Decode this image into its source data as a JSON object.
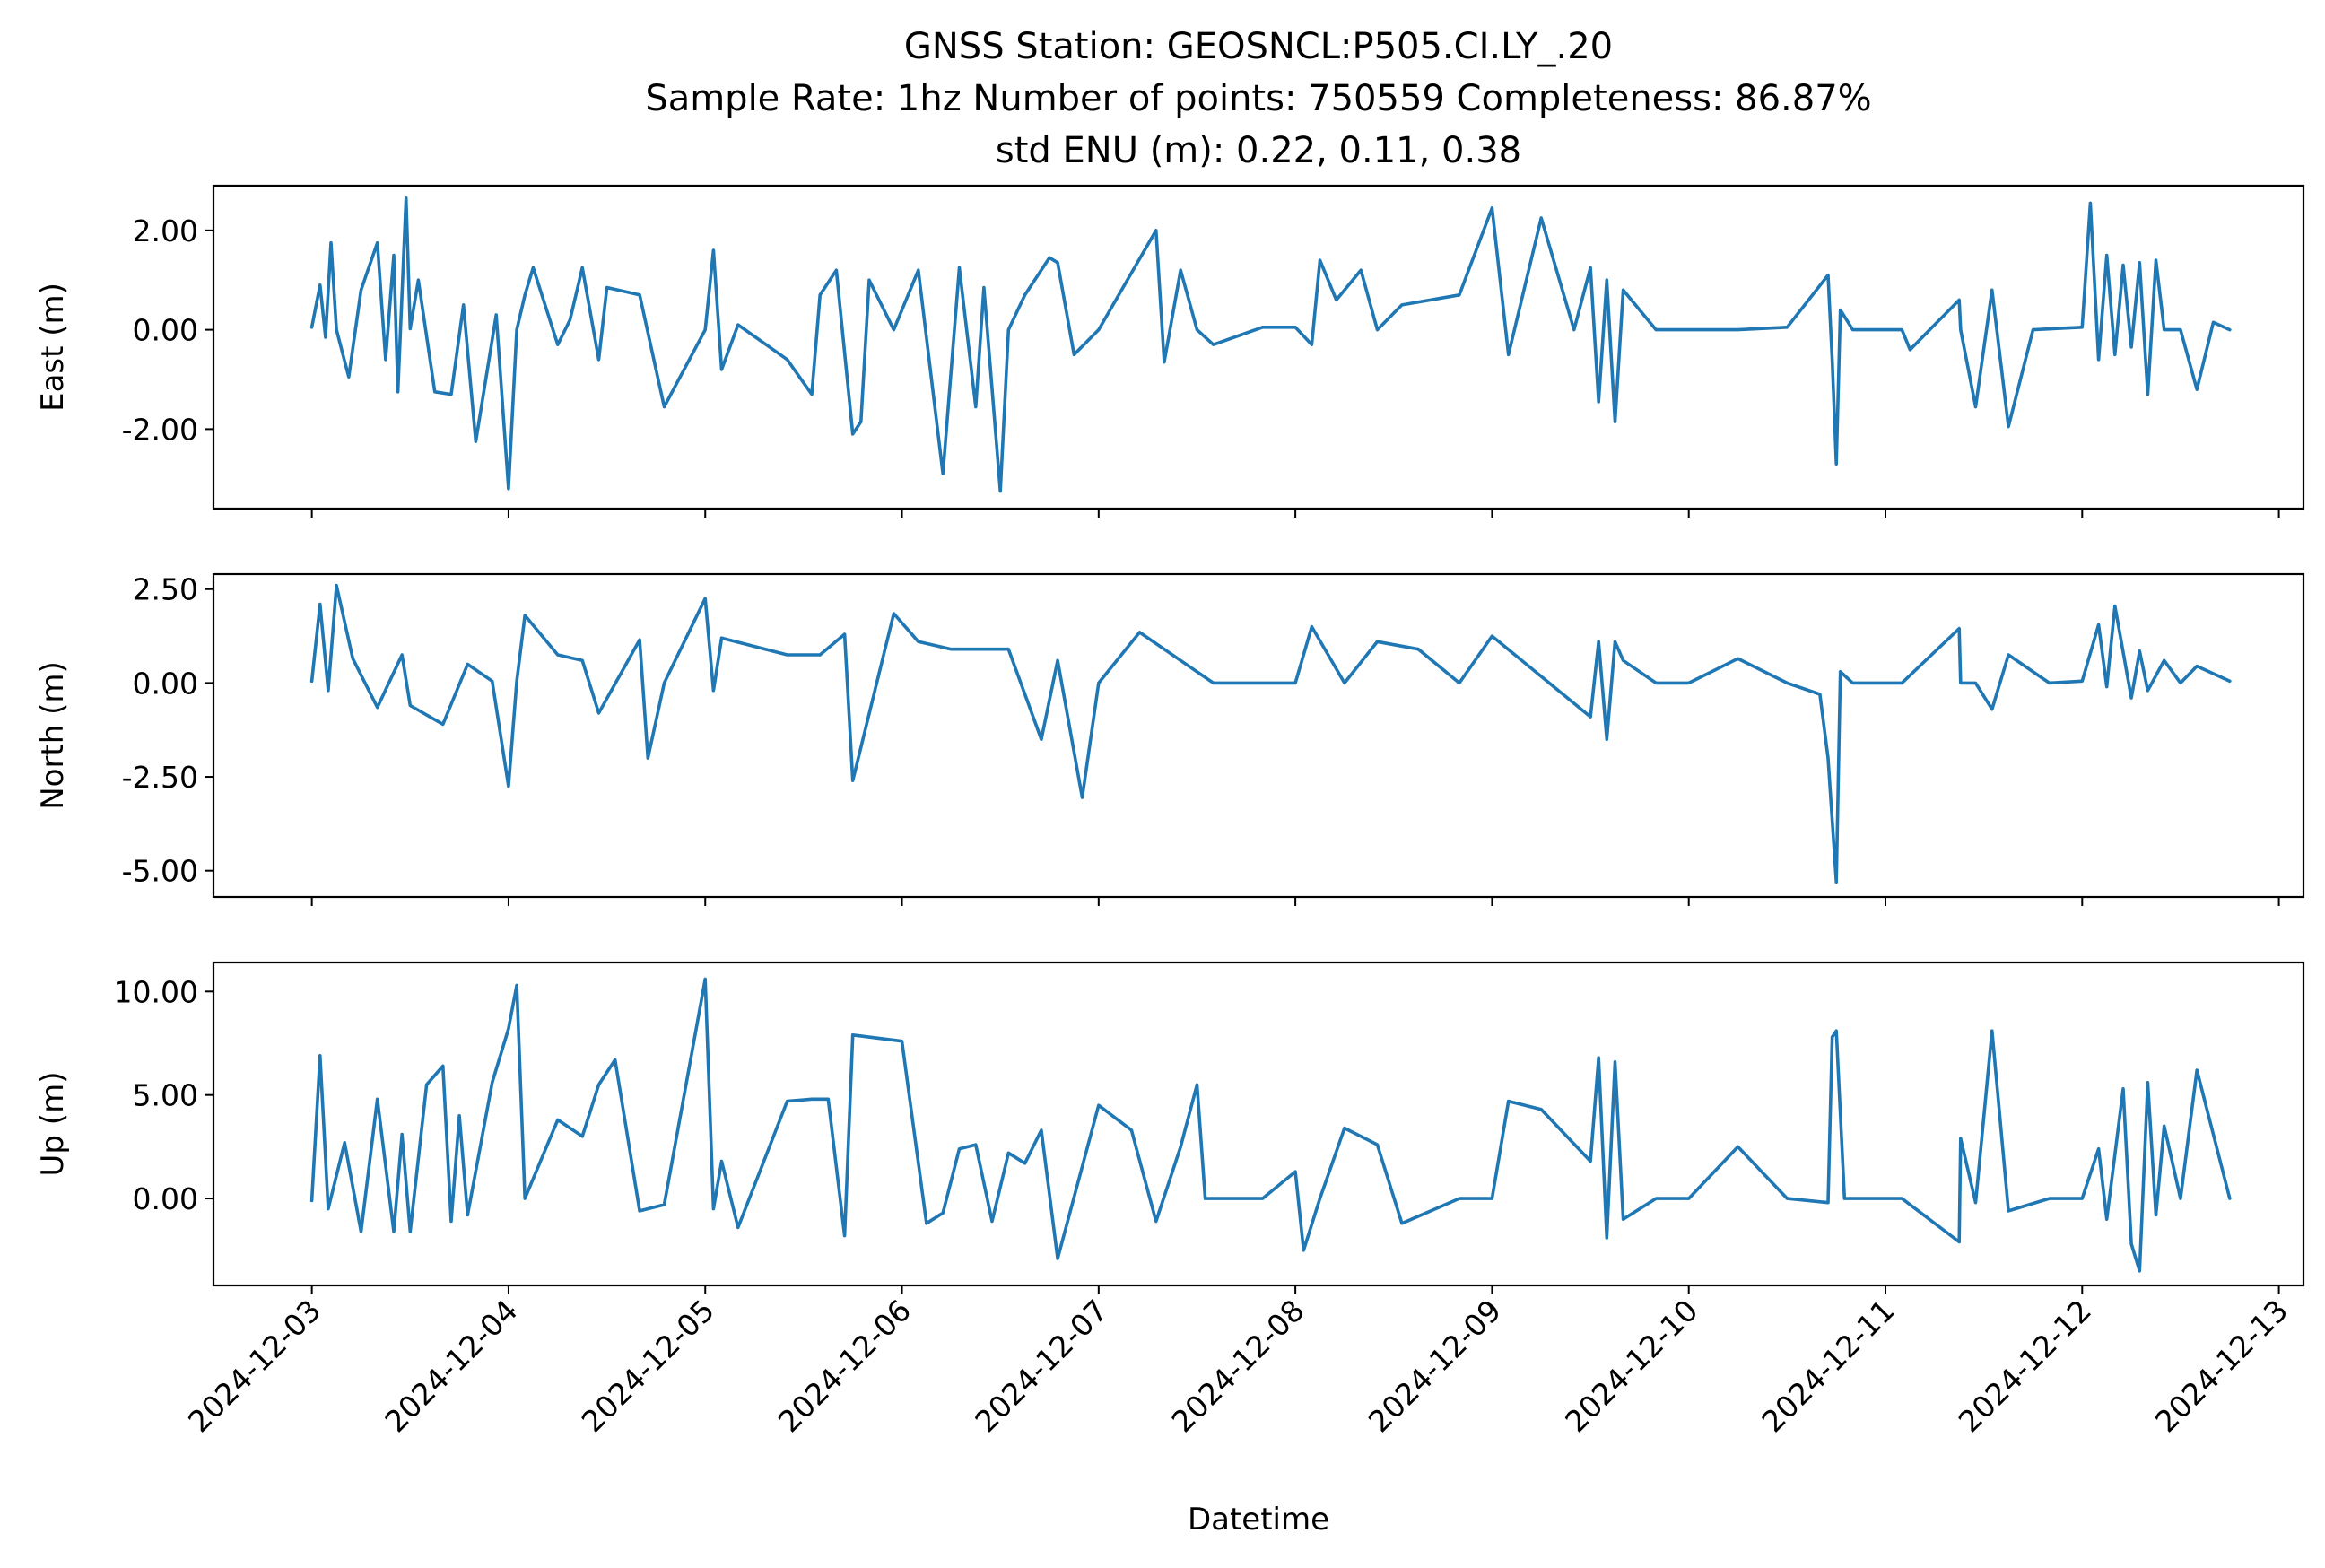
{
  "chart_data": [
    {
      "type": "line",
      "title_lines": [
        "GNSS Station: GEOSNCL:P505.CI.LY_.20",
        "Sample Rate: 1hz   Number of points: 750559    Completeness:  86.87%",
        "std ENU (m):  0.22, 0.11, 0.38"
      ],
      "xlabel": "Datetime",
      "xlim": [
        "2024-12-02T12:00",
        "2024-12-13T03:00"
      ],
      "x_ticks": [
        "2024-12-03",
        "2024-12-04",
        "2024-12-05",
        "2024-12-06",
        "2024-12-07",
        "2024-12-08",
        "2024-12-09",
        "2024-12-10",
        "2024-12-11",
        "2024-12-12",
        "2024-12-13"
      ],
      "color": "#1f77b4",
      "panels": [
        {
          "ylabel": "East (m)",
          "ylim": [
            -3.6,
            2.9
          ],
          "yticks": [
            2.0,
            0.0,
            -2.0
          ],
          "ytick_labels": [
            "2.00",
            "0.00",
            "-2.00"
          ],
          "series": [
            {
              "x": [
                "2024-12-03T00:00",
                "2024-12-03T01:00",
                "2024-12-03T01:40",
                "2024-12-03T02:20",
                "2024-12-03T03:00",
                "2024-12-03T04:30",
                "2024-12-03T06:00",
                "2024-12-03T08:00",
                "2024-12-03T09:00",
                "2024-12-03T10:00",
                "2024-12-03T10:30",
                "2024-12-03T11:30",
                "2024-12-03T12:00",
                "2024-12-03T13:00",
                "2024-12-03T15:00",
                "2024-12-03T17:00",
                "2024-12-03T18:30",
                "2024-12-03T20:00",
                "2024-12-03T22:30",
                "2024-12-04T00:00",
                "2024-12-04T01:00",
                "2024-12-04T02:00",
                "2024-12-04T03:00",
                "2024-12-04T06:00",
                "2024-12-04T07:30",
                "2024-12-04T09:00",
                "2024-12-04T11:00",
                "2024-12-04T12:00",
                "2024-12-04T16:00",
                "2024-12-04T19:00",
                "2024-12-05T00:00",
                "2024-12-05T01:00",
                "2024-12-05T02:00",
                "2024-12-05T04:00",
                "2024-12-05T10:00",
                "2024-12-05T13:00",
                "2024-12-05T14:00",
                "2024-12-05T16:00",
                "2024-12-05T18:00",
                "2024-12-05T19:00",
                "2024-12-05T20:00",
                "2024-12-05T23:00",
                "2024-12-06T02:00",
                "2024-12-06T05:00",
                "2024-12-06T07:00",
                "2024-12-06T09:00",
                "2024-12-06T10:00",
                "2024-12-06T12:00",
                "2024-12-06T13:00",
                "2024-12-06T15:00",
                "2024-12-06T18:00",
                "2024-12-06T19:00",
                "2024-12-06T21:00",
                "2024-12-07T00:00",
                "2024-12-07T07:00",
                "2024-12-07T08:00",
                "2024-12-07T10:00",
                "2024-12-07T12:00",
                "2024-12-07T14:00",
                "2024-12-07T20:00",
                "2024-12-08T00:00",
                "2024-12-08T02:00",
                "2024-12-08T03:00",
                "2024-12-08T05:00",
                "2024-12-08T08:00",
                "2024-12-08T10:00",
                "2024-12-08T13:00",
                "2024-12-08T20:00",
                "2024-12-09T00:00",
                "2024-12-09T02:00",
                "2024-12-09T06:00",
                "2024-12-09T10:00",
                "2024-12-09T12:00",
                "2024-12-09T13:00",
                "2024-12-09T14:00",
                "2024-12-09T15:00",
                "2024-12-09T16:00",
                "2024-12-09T20:00",
                "2024-12-10T00:00",
                "2024-12-10T06:00",
                "2024-12-10T12:00",
                "2024-12-10T17:00",
                "2024-12-10T17:30",
                "2024-12-10T18:00",
                "2024-12-10T18:30",
                "2024-12-10T20:00",
                "2024-12-11T00:00",
                "2024-12-11T02:00",
                "2024-12-11T03:00",
                "2024-12-11T09:00",
                "2024-12-11T09:10",
                "2024-12-11T11:00",
                "2024-12-11T13:00",
                "2024-12-11T15:00",
                "2024-12-11T18:00",
                "2024-12-12T00:00",
                "2024-12-12T01:00",
                "2024-12-12T02:00",
                "2024-12-12T03:00",
                "2024-12-12T04:00",
                "2024-12-12T05:00",
                "2024-12-12T06:00",
                "2024-12-12T07:00",
                "2024-12-12T08:00",
                "2024-12-12T09:00",
                "2024-12-12T10:00",
                "2024-12-12T12:00",
                "2024-12-12T14:00",
                "2024-12-12T16:00",
                "2024-12-12T18:00"
              ],
              "y": [
                0.05,
                0.9,
                -0.15,
                1.75,
                0.0,
                -0.95,
                0.8,
                1.75,
                -0.6,
                1.5,
                -1.25,
                2.65,
                0.02,
                1.0,
                -1.25,
                -1.3,
                0.5,
                -2.25,
                0.3,
                -3.2,
                0.0,
                0.7,
                1.25,
                -0.3,
                0.2,
                1.25,
                -0.6,
                0.85,
                0.7,
                -1.55,
                0.0,
                1.6,
                -0.8,
                0.1,
                -0.6,
                -1.3,
                0.7,
                1.2,
                -2.1,
                -1.85,
                1.0,
                0.0,
                1.2,
                -2.9,
                1.25,
                -1.55,
                0.85,
                -3.25,
                0.0,
                0.7,
                1.45,
                1.35,
                -0.5,
                0.0,
                2.0,
                -0.65,
                1.2,
                0.0,
                -0.3,
                0.05,
                0.05,
                -0.3,
                1.4,
                0.6,
                1.2,
                0.0,
                0.5,
                0.7,
                2.45,
                -0.5,
                2.25,
                0.0,
                1.25,
                -1.45,
                1.0,
                -1.85,
                0.8,
                0.0,
                0.0,
                0.0,
                0.05,
                1.1,
                -0.6,
                -2.7,
                0.4,
                0.0,
                0.0,
                0.0,
                -0.4,
                0.6,
                0.0,
                -1.55,
                0.8,
                -1.95,
                0.0,
                0.05,
                2.55,
                -0.6,
                1.5,
                -0.5,
                1.3,
                -0.35,
                1.35,
                -1.3,
                1.4,
                0.0,
                0.0,
                -1.2,
                0.15,
                0.0
              ]
            }
          ]
        },
        {
          "ylabel": "North (m)",
          "ylim": [
            -5.7,
            2.9
          ],
          "yticks": [
            2.5,
            0.0,
            -2.5,
            -5.0
          ],
          "ytick_labels": [
            "2.50",
            "0.00",
            "-2.50",
            "-5.00"
          ],
          "series": [
            {
              "x": [
                "2024-12-03T00:00",
                "2024-12-03T01:00",
                "2024-12-03T02:00",
                "2024-12-03T03:00",
                "2024-12-03T05:00",
                "2024-12-03T08:00",
                "2024-12-03T11:00",
                "2024-12-03T12:00",
                "2024-12-03T16:00",
                "2024-12-03T19:00",
                "2024-12-03T22:00",
                "2024-12-04T00:00",
                "2024-12-04T01:00",
                "2024-12-04T02:00",
                "2024-12-04T06:00",
                "2024-12-04T09:00",
                "2024-12-04T11:00",
                "2024-12-04T16:00",
                "2024-12-04T17:00",
                "2024-12-04T19:00",
                "2024-12-05T00:00",
                "2024-12-05T01:00",
                "2024-12-05T02:00",
                "2024-12-05T10:00",
                "2024-12-05T14:00",
                "2024-12-05T17:00",
                "2024-12-05T18:00",
                "2024-12-05T23:00",
                "2024-12-06T02:00",
                "2024-12-06T06:00",
                "2024-12-06T10:00",
                "2024-12-06T13:00",
                "2024-12-06T17:00",
                "2024-12-06T19:00",
                "2024-12-06T22:00",
                "2024-12-07T00:00",
                "2024-12-07T05:00",
                "2024-12-07T10:00",
                "2024-12-07T14:00",
                "2024-12-07T20:00",
                "2024-12-08T00:00",
                "2024-12-08T02:00",
                "2024-12-08T06:00",
                "2024-12-08T10:00",
                "2024-12-08T15:00",
                "2024-12-08T20:00",
                "2024-12-09T00:00",
                "2024-12-09T12:00",
                "2024-12-09T13:00",
                "2024-12-09T14:00",
                "2024-12-09T15:00",
                "2024-12-09T16:00",
                "2024-12-09T20:00",
                "2024-12-10T00:00",
                "2024-12-10T06:00",
                "2024-12-10T12:00",
                "2024-12-10T16:00",
                "2024-12-10T17:00",
                "2024-12-10T18:00",
                "2024-12-10T18:30",
                "2024-12-10T20:00",
                "2024-12-11T00:00",
                "2024-12-11T02:00",
                "2024-12-11T09:00",
                "2024-12-11T09:10",
                "2024-12-11T11:00",
                "2024-12-11T13:00",
                "2024-12-11T15:00",
                "2024-12-11T20:00",
                "2024-12-12T00:00",
                "2024-12-12T02:00",
                "2024-12-12T03:00",
                "2024-12-12T04:00",
                "2024-12-12T06:00",
                "2024-12-12T07:00",
                "2024-12-12T08:00",
                "2024-12-12T10:00",
                "2024-12-12T12:00",
                "2024-12-12T14:00",
                "2024-12-12T18:00"
              ],
              "y": [
                0.05,
                2.1,
                -0.2,
                2.6,
                0.65,
                -0.65,
                0.75,
                -0.6,
                -1.1,
                0.5,
                0.05,
                -2.75,
                0.05,
                1.8,
                0.75,
                0.6,
                -0.8,
                1.15,
                -2.0,
                0.0,
                2.25,
                -0.2,
                1.2,
                0.75,
                0.75,
                1.3,
                -2.6,
                1.85,
                1.1,
                0.9,
                0.9,
                0.9,
                -1.5,
                0.6,
                -3.05,
                0.0,
                1.35,
                0.6,
                0.0,
                0.0,
                0.0,
                1.5,
                0.0,
                1.1,
                0.9,
                0.0,
                1.25,
                -0.9,
                1.1,
                -1.5,
                1.1,
                0.6,
                0.0,
                0.0,
                0.65,
                0.0,
                -0.3,
                -2.0,
                -5.3,
                0.3,
                0.0,
                0.0,
                0.0,
                1.45,
                0.0,
                0.0,
                -0.7,
                0.75,
                0.0,
                0.05,
                1.55,
                -0.1,
                2.05,
                -0.4,
                0.85,
                -0.2,
                0.6,
                0.0,
                0.45,
                0.05
              ]
            }
          ]
        },
        {
          "ylabel": "Up (m)",
          "ylim": [
            -4.2,
            11.4
          ],
          "yticks": [
            10.0,
            5.0,
            0.0
          ],
          "ytick_labels": [
            "10.00",
            "5.00",
            "0.00"
          ],
          "series": [
            {
              "x": [
                "2024-12-03T00:00",
                "2024-12-03T01:00",
                "2024-12-03T02:00",
                "2024-12-03T04:00",
                "2024-12-03T06:00",
                "2024-12-03T08:00",
                "2024-12-03T10:00",
                "2024-12-03T11:00",
                "2024-12-03T12:00",
                "2024-12-03T14:00",
                "2024-12-03T16:00",
                "2024-12-03T17:00",
                "2024-12-03T18:00",
                "2024-12-03T19:00",
                "2024-12-03T22:00",
                "2024-12-04T00:00",
                "2024-12-04T01:00",
                "2024-12-04T02:00",
                "2024-12-04T06:00",
                "2024-12-04T09:00",
                "2024-12-04T11:00",
                "2024-12-04T13:00",
                "2024-12-04T16:00",
                "2024-12-04T19:00",
                "2024-12-05T00:00",
                "2024-12-05T01:00",
                "2024-12-05T02:00",
                "2024-12-05T04:00",
                "2024-12-05T10:00",
                "2024-12-05T13:00",
                "2024-12-05T15:00",
                "2024-12-05T17:00",
                "2024-12-05T18:00",
                "2024-12-06T00:00",
                "2024-12-06T03:00",
                "2024-12-06T05:00",
                "2024-12-06T07:00",
                "2024-12-06T09:00",
                "2024-12-06T11:00",
                "2024-12-06T13:00",
                "2024-12-06T15:00",
                "2024-12-06T17:00",
                "2024-12-06T19:00",
                "2024-12-07T00:00",
                "2024-12-07T04:00",
                "2024-12-07T07:00",
                "2024-12-07T10:00",
                "2024-12-07T12:00",
                "2024-12-07T13:00",
                "2024-12-07T20:00",
                "2024-12-08T00:00",
                "2024-12-08T01:00",
                "2024-12-08T03:00",
                "2024-12-08T06:00",
                "2024-12-08T10:00",
                "2024-12-08T13:00",
                "2024-12-08T20:00",
                "2024-12-09T00:00",
                "2024-12-09T02:00",
                "2024-12-09T06:00",
                "2024-12-09T12:00",
                "2024-12-09T13:00",
                "2024-12-09T14:00",
                "2024-12-09T15:00",
                "2024-12-09T16:00",
                "2024-12-09T20:00",
                "2024-12-10T00:00",
                "2024-12-10T06:00",
                "2024-12-10T12:00",
                "2024-12-10T17:00",
                "2024-12-10T17:30",
                "2024-12-10T18:00",
                "2024-12-10T19:00",
                "2024-12-10T20:00",
                "2024-12-11T00:00",
                "2024-12-11T02:00",
                "2024-12-11T09:00",
                "2024-12-11T09:10",
                "2024-12-11T11:00",
                "2024-12-11T13:00",
                "2024-12-11T15:00",
                "2024-12-11T20:00",
                "2024-12-12T00:00",
                "2024-12-12T02:00",
                "2024-12-12T03:00",
                "2024-12-12T05:00",
                "2024-12-12T06:00",
                "2024-12-12T07:00",
                "2024-12-12T08:00",
                "2024-12-12T09:00",
                "2024-12-12T10:00",
                "2024-12-12T12:00",
                "2024-12-12T14:00",
                "2024-12-12T18:00"
              ],
              "y": [
                -0.1,
                6.9,
                -0.5,
                2.7,
                -1.6,
                4.8,
                -1.6,
                3.1,
                -1.6,
                5.5,
                6.4,
                -1.1,
                4.0,
                -0.8,
                5.6,
                8.2,
                10.3,
                0.0,
                3.8,
                3.0,
                5.5,
                6.7,
                -0.6,
                -0.3,
                10.6,
                -0.5,
                1.8,
                -1.4,
                4.7,
                4.8,
                4.8,
                -1.8,
                7.9,
                7.6,
                -1.2,
                -0.7,
                2.4,
                2.6,
                -1.1,
                2.2,
                1.7,
                3.3,
                -2.9,
                4.5,
                3.3,
                -1.1,
                2.5,
                5.5,
                0.0,
                0.0,
                1.3,
                -2.5,
                0.0,
                3.4,
                2.6,
                -1.2,
                0.0,
                0.0,
                4.7,
                4.3,
                1.8,
                6.8,
                -1.9,
                6.6,
                -1.0,
                0.0,
                0.0,
                2.5,
                0.0,
                -0.2,
                7.8,
                8.1,
                0.0,
                0.0,
                0.0,
                0.0,
                -2.1,
                2.9,
                -0.2,
                8.1,
                -0.6,
                0.0,
                0.0,
                2.4,
                -1.0,
                5.3,
                -2.2,
                -3.5,
                5.6,
                -0.8,
                3.5,
                0.0,
                6.2,
                0.0
              ]
            }
          ]
        }
      ]
    }
  ]
}
